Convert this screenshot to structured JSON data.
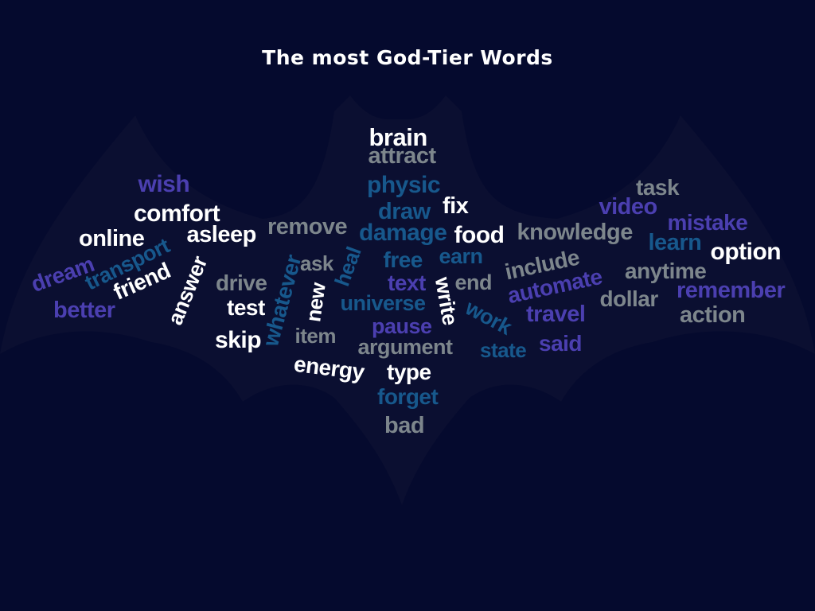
{
  "title": "The most God-Tier Words",
  "colors": {
    "background": "#050a2e",
    "bat_silhouette": "#0b0f31",
    "white": "#ffffff",
    "gray": "#7d868c",
    "blue": "#17588c",
    "purple": "#4b3fb0"
  },
  "words": [
    {
      "text": "brain",
      "color": "white"
    },
    {
      "text": "attract",
      "color": "gray"
    },
    {
      "text": "physic",
      "color": "blue"
    },
    {
      "text": "wish",
      "color": "purple"
    },
    {
      "text": "fix",
      "color": "white"
    },
    {
      "text": "task",
      "color": "gray"
    },
    {
      "text": "draw",
      "color": "blue"
    },
    {
      "text": "video",
      "color": "purple"
    },
    {
      "text": "comfort",
      "color": "white"
    },
    {
      "text": "mistake",
      "color": "purple"
    },
    {
      "text": "remove",
      "color": "gray"
    },
    {
      "text": "food",
      "color": "white"
    },
    {
      "text": "knowledge",
      "color": "gray"
    },
    {
      "text": "damage",
      "color": "blue"
    },
    {
      "text": "asleep",
      "color": "white"
    },
    {
      "text": "online",
      "color": "white"
    },
    {
      "text": "learn",
      "color": "blue"
    },
    {
      "text": "option",
      "color": "white"
    },
    {
      "text": "transport",
      "color": "blue"
    },
    {
      "text": "free",
      "color": "blue"
    },
    {
      "text": "earn",
      "color": "blue"
    },
    {
      "text": "include",
      "color": "gray"
    },
    {
      "text": "dream",
      "color": "purple"
    },
    {
      "text": "ask",
      "color": "gray"
    },
    {
      "text": "heal",
      "color": "blue"
    },
    {
      "text": "anytime",
      "color": "gray"
    },
    {
      "text": "answer",
      "color": "white"
    },
    {
      "text": "friend",
      "color": "white"
    },
    {
      "text": "whatever",
      "color": "blue"
    },
    {
      "text": "drive",
      "color": "gray"
    },
    {
      "text": "text",
      "color": "purple"
    },
    {
      "text": "end",
      "color": "gray"
    },
    {
      "text": "write",
      "color": "white"
    },
    {
      "text": "automate",
      "color": "purple"
    },
    {
      "text": "remember",
      "color": "purple"
    },
    {
      "text": "new",
      "color": "white"
    },
    {
      "text": "dollar",
      "color": "gray"
    },
    {
      "text": "better",
      "color": "purple"
    },
    {
      "text": "universe",
      "color": "blue"
    },
    {
      "text": "test",
      "color": "white"
    },
    {
      "text": "work",
      "color": "blue"
    },
    {
      "text": "travel",
      "color": "purple"
    },
    {
      "text": "action",
      "color": "gray"
    },
    {
      "text": "pause",
      "color": "purple"
    },
    {
      "text": "item",
      "color": "gray"
    },
    {
      "text": "skip",
      "color": "white"
    },
    {
      "text": "said",
      "color": "purple"
    },
    {
      "text": "argument",
      "color": "gray"
    },
    {
      "text": "state",
      "color": "blue"
    },
    {
      "text": "energy",
      "color": "white"
    },
    {
      "text": "type",
      "color": "white"
    },
    {
      "text": "forget",
      "color": "blue"
    },
    {
      "text": "bad",
      "color": "gray"
    }
  ]
}
